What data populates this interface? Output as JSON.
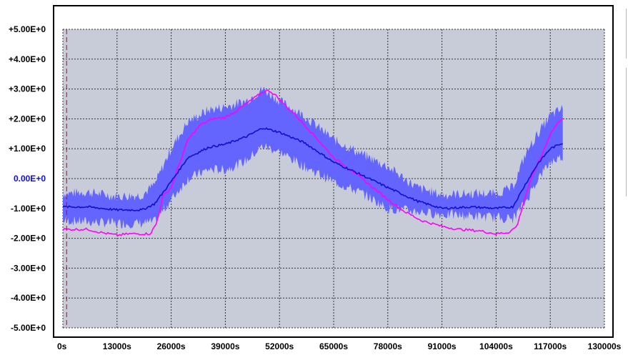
{
  "chart_data": {
    "type": "line",
    "title": "",
    "xlabel": "",
    "ylabel": "",
    "xlim": [
      0,
      130000
    ],
    "ylim": [
      -5,
      5
    ],
    "grid": true,
    "x_ticks": [
      "0s",
      "13000s",
      "26000s",
      "39000s",
      "52000s",
      "65000s",
      "78000s",
      "91000s",
      "104000s",
      "117000s",
      "130000s"
    ],
    "y_ticks": [
      "+5.00E+0",
      "+4.00E+0",
      "+3.00E+0",
      "+2.00E+0",
      "+1.00E+0",
      "0.00E+0",
      "-1.00E+0",
      "-2.00E+0",
      "-3.00E+0",
      "-4.00E+0",
      "-5.00E+0"
    ],
    "marker_line_x": 900,
    "colors": {
      "plot_background": "#c8ccd8",
      "band": "#6464ff",
      "mean_line": "#1010cc",
      "magenta_line": "#ff00ff",
      "marker_line": "#cc0000",
      "grid": "#333333",
      "zero_label": "#1010cc"
    },
    "series": [
      {
        "role": "mean",
        "x": [
          0,
          6000,
          13000,
          19000,
          22000,
          26000,
          30000,
          35000,
          39000,
          44000,
          48000,
          52000,
          58000,
          65000,
          72000,
          78000,
          85000,
          91000,
          98000,
          104000,
          108000,
          111000,
          114000,
          117000,
          120000
        ],
        "values": [
          -0.95,
          -0.95,
          -1.05,
          -1.05,
          -0.85,
          -0.1,
          0.7,
          1.05,
          1.15,
          1.4,
          1.7,
          1.55,
          1.2,
          0.55,
          0.1,
          -0.3,
          -0.75,
          -1.0,
          -0.95,
          -1.0,
          -0.95,
          -0.2,
          0.5,
          1.0,
          1.2
        ]
      },
      {
        "role": "band_upper",
        "x": [
          0,
          6000,
          13000,
          19000,
          22000,
          26000,
          30000,
          35000,
          39000,
          44000,
          48000,
          52000,
          58000,
          65000,
          72000,
          78000,
          85000,
          91000,
          98000,
          104000,
          108000,
          111000,
          114000,
          117000,
          120000
        ],
        "values": [
          -0.5,
          -0.45,
          -0.6,
          -0.55,
          -0.2,
          1.0,
          1.9,
          2.3,
          2.4,
          2.6,
          3.0,
          2.6,
          2.1,
          1.3,
          0.8,
          0.4,
          -0.3,
          -0.55,
          -0.5,
          -0.5,
          -0.3,
          0.8,
          1.5,
          2.1,
          2.35
        ]
      },
      {
        "role": "band_lower",
        "x": [
          0,
          6000,
          13000,
          19000,
          22000,
          26000,
          30000,
          35000,
          39000,
          44000,
          48000,
          52000,
          58000,
          65000,
          72000,
          78000,
          85000,
          91000,
          98000,
          104000,
          108000,
          111000,
          114000,
          117000,
          120000
        ],
        "values": [
          -1.4,
          -1.45,
          -1.5,
          -1.5,
          -1.45,
          -0.7,
          0.0,
          0.3,
          0.3,
          0.6,
          1.1,
          0.9,
          0.4,
          -0.1,
          -0.5,
          -1.0,
          -1.1,
          -1.2,
          -1.25,
          -1.3,
          -1.35,
          -0.8,
          0.0,
          0.55,
          0.75
        ]
      },
      {
        "role": "magenta",
        "x": [
          0,
          3000,
          6000,
          9000,
          13000,
          16000,
          19000,
          21000,
          22500,
          24000,
          26000,
          28000,
          30000,
          33000,
          36000,
          39000,
          42000,
          45000,
          48000,
          49500,
          51000,
          53000,
          56000,
          60000,
          65000,
          70000,
          74000,
          78000,
          82000,
          86000,
          91000,
          95000,
          100000,
          104000,
          107000,
          109000,
          111000,
          113000,
          115000,
          117000,
          119000,
          120000
        ],
        "values": [
          -1.7,
          -1.7,
          -1.7,
          -1.8,
          -1.9,
          -1.85,
          -1.85,
          -1.85,
          -1.5,
          -0.6,
          -0.3,
          0.5,
          1.3,
          1.8,
          2.0,
          2.05,
          2.3,
          2.6,
          2.9,
          2.95,
          2.8,
          2.5,
          2.1,
          1.5,
          0.7,
          0.2,
          -0.25,
          -0.7,
          -1.1,
          -1.4,
          -1.6,
          -1.7,
          -1.75,
          -1.85,
          -1.8,
          -1.6,
          -0.6,
          0.2,
          0.8,
          1.5,
          1.9,
          2.05
        ]
      }
    ]
  }
}
